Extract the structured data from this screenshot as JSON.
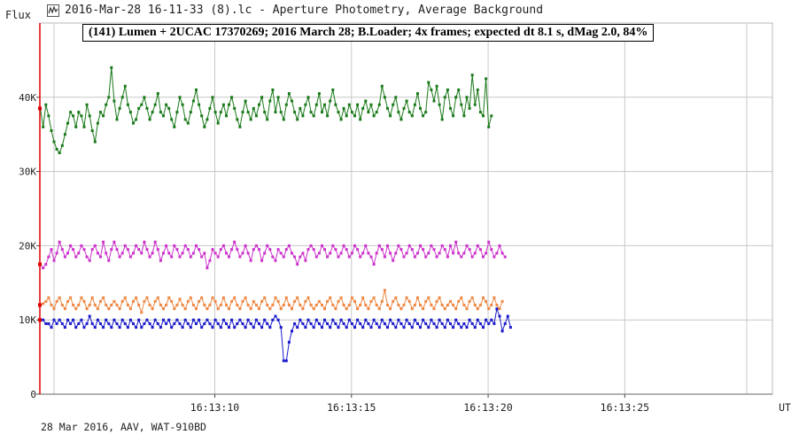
{
  "window": {
    "title": "2016-Mar-28 16-11-33 (8).lc - Aperture Photometry, Average Background",
    "icon": "lightcurve-app-icon"
  },
  "footer": "28 Mar 2016, AAV, WAT-910BD",
  "chart_data": {
    "type": "line",
    "title": "(141) Lumen + 2UCAC 17370269; 2016 March 28; B.Loader; 4x frames; expected dt 8.1 s, dMag 2.0, 84%",
    "ylabel": "Flux",
    "xlabel": "UT",
    "ylim": [
      0,
      50000
    ],
    "xlim": [
      "16:13:03.6",
      "16:13:30.4"
    ],
    "grid": true,
    "y_ticks": [
      {
        "value": 0,
        "label": "0"
      },
      {
        "value": 10000,
        "label": "10K"
      },
      {
        "value": 20000,
        "label": "20K"
      },
      {
        "value": 30000,
        "label": "30K"
      },
      {
        "value": 40000,
        "label": "40K"
      }
    ],
    "x_ticks": [
      {
        "value": "16:13:10",
        "label": "16:13:10"
      },
      {
        "value": "16:13:15",
        "label": "16:13:15"
      },
      {
        "value": "16:13:20",
        "label": "16:13:20"
      },
      {
        "value": "16:13:25",
        "label": "16:13:25"
      }
    ],
    "start_time": "16:13:03.62",
    "sample_interval_s": 0.1,
    "series": [
      {
        "color": "#1a7a1a",
        "values": [
          38500,
          36000,
          39000,
          37500,
          35500,
          34000,
          33000,
          32500,
          33500,
          35000,
          36500,
          38000,
          37500,
          36000,
          38000,
          37500,
          36000,
          39000,
          37500,
          35500,
          34000,
          36500,
          38000,
          37500,
          39000,
          40000,
          44000,
          39500,
          37000,
          38500,
          40000,
          41500,
          39000,
          38000,
          36500,
          37000,
          38500,
          39000,
          40000,
          38500,
          37000,
          38000,
          39000,
          40500,
          38000,
          37500,
          39000,
          38500,
          37000,
          36000,
          38000,
          40000,
          39000,
          37000,
          36500,
          38000,
          39500,
          41000,
          39000,
          37500,
          36000,
          37000,
          38500,
          40000,
          38000,
          36500,
          38000,
          39000,
          37500,
          39000,
          40000,
          38500,
          37000,
          36000,
          38000,
          39500,
          38000,
          37000,
          38500,
          37500,
          39000,
          40000,
          38000,
          37000,
          39500,
          41000,
          38000,
          40000,
          38000,
          37000,
          39000,
          40500,
          39500,
          38000,
          37000,
          38500,
          37500,
          39000,
          40000,
          38000,
          37500,
          39000,
          40500,
          38000,
          39000,
          37500,
          39500,
          41000,
          39000,
          38000,
          37000,
          38500,
          37500,
          39000,
          38000,
          37500,
          39000,
          37000,
          38500,
          39500,
          38000,
          39000,
          37500,
          38000,
          39000,
          41500,
          40000,
          38500,
          37500,
          39000,
          40000,
          38000,
          37000,
          38500,
          39500,
          38000,
          37500,
          39000,
          40500,
          38500,
          37500,
          38000,
          42000,
          41000,
          39500,
          41500,
          39000,
          37000,
          40000,
          41000,
          38500,
          37500,
          40000,
          41000,
          39000,
          37500,
          40000,
          38500,
          43000,
          39000,
          41000,
          38000,
          37500,
          42500,
          36000,
          37500
        ]
      },
      {
        "color": "#cc33cc",
        "values": [
          17500,
          17000,
          17500,
          18500,
          19500,
          18000,
          19000,
          20500,
          19500,
          18500,
          19000,
          20000,
          19500,
          18500,
          19000,
          20000,
          19500,
          18500,
          18000,
          19500,
          20000,
          19000,
          18500,
          20500,
          19000,
          18000,
          19500,
          20500,
          19500,
          18500,
          19000,
          20000,
          19500,
          18500,
          19000,
          20000,
          19500,
          19000,
          20500,
          19500,
          18500,
          19000,
          20500,
          19500,
          18000,
          19000,
          20000,
          19000,
          18500,
          20000,
          19500,
          18500,
          19000,
          20000,
          19500,
          18500,
          19000,
          20000,
          19500,
          18500,
          19000,
          17000,
          18000,
          19500,
          19000,
          18500,
          19500,
          20000,
          19000,
          18500,
          19500,
          20500,
          19500,
          18500,
          19000,
          20000,
          19000,
          18000,
          19500,
          20000,
          19500,
          18000,
          19000,
          20000,
          19500,
          18500,
          18000,
          19500,
          19000,
          18500,
          19500,
          20000,
          19000,
          18500,
          17500,
          18500,
          19000,
          18000,
          19500,
          20000,
          19500,
          18500,
          19000,
          20000,
          19500,
          18500,
          19000,
          20000,
          19500,
          18500,
          19000,
          20000,
          19500,
          18500,
          19000,
          20000,
          19500,
          18500,
          19000,
          20000,
          19000,
          18500,
          17500,
          19000,
          20000,
          19500,
          18500,
          20000,
          19000,
          18000,
          19000,
          20000,
          19500,
          18500,
          19000,
          20000,
          19500,
          18500,
          19000,
          20000,
          19500,
          18500,
          19000,
          20000,
          19500,
          18500,
          19000,
          20000,
          19500,
          18500,
          20000,
          19000,
          20500,
          19000,
          18500,
          19000,
          20000,
          19500,
          18500,
          19000,
          20000,
          19500,
          18500,
          19000,
          20500,
          19500,
          18500,
          19000,
          20000,
          19000,
          18500
        ]
      },
      {
        "color": "#ee8844",
        "values": [
          12000,
          12200,
          12500,
          13000,
          12000,
          11500,
          12500,
          13000,
          12000,
          11500,
          12500,
          13000,
          12000,
          11500,
          12000,
          13000,
          12500,
          11500,
          12000,
          13000,
          12000,
          11500,
          12500,
          13000,
          12000,
          11500,
          12000,
          12500,
          12000,
          11500,
          12500,
          13000,
          12000,
          11500,
          12500,
          13000,
          12000,
          11000,
          12500,
          13000,
          12000,
          11500,
          12500,
          13000,
          12000,
          11500,
          12000,
          13000,
          12500,
          11500,
          12000,
          12800,
          12000,
          11500,
          12500,
          13000,
          12000,
          11500,
          12500,
          13000,
          12000,
          11500,
          12000,
          13000,
          12500,
          11500,
          12000,
          13000,
          12000,
          11500,
          12500,
          13000,
          12000,
          11500,
          12500,
          13000,
          12000,
          11500,
          12500,
          12000,
          11500,
          12500,
          13000,
          12000,
          11500,
          12000,
          13000,
          12500,
          11500,
          12000,
          13000,
          12000,
          11500,
          12500,
          13000,
          12000,
          11500,
          12500,
          13000,
          12000,
          11500,
          12000,
          12500,
          12000,
          11500,
          12500,
          13000,
          12000,
          11500,
          12500,
          13000,
          12000,
          11500,
          12000,
          13000,
          12500,
          11500,
          12000,
          13000,
          12000,
          11500,
          12500,
          13000,
          12000,
          11500,
          12500,
          14000,
          12000,
          11500,
          12500,
          13000,
          12000,
          11500,
          12000,
          13000,
          12500,
          11500,
          12000,
          13000,
          12000,
          11500,
          12500,
          13000,
          12000,
          11500,
          12500,
          13000,
          12000,
          11500,
          12000,
          12500,
          12000,
          11500,
          12500,
          13000,
          12000,
          11500,
          12500,
          13000,
          12000,
          11500,
          12000,
          13000,
          12500,
          11500,
          12000,
          13000,
          12000,
          11500,
          12500
        ]
      },
      {
        "color": "#1a1acc",
        "values": [
          10000,
          10000,
          9500,
          9500,
          9000,
          10000,
          9500,
          10000,
          9500,
          9000,
          10000,
          9500,
          10000,
          9000,
          9500,
          10000,
          9000,
          9500,
          10500,
          9500,
          9000,
          10000,
          9500,
          9000,
          10000,
          9500,
          9000,
          10000,
          9500,
          9000,
          10000,
          9500,
          9000,
          10000,
          9500,
          9000,
          10000,
          9000,
          9500,
          10000,
          9500,
          9000,
          10000,
          9500,
          9000,
          10000,
          9500,
          10000,
          9000,
          9500,
          10000,
          9500,
          9000,
          10000,
          9500,
          9000,
          10000,
          9500,
          10000,
          9000,
          9500,
          10000,
          9500,
          9000,
          10000,
          9500,
          9000,
          10000,
          9500,
          9000,
          10000,
          9000,
          9500,
          10000,
          9500,
          9000,
          10000,
          9500,
          9000,
          10000,
          9500,
          9000,
          10000,
          9500,
          9000,
          10000,
          10500,
          10000,
          9000,
          4500,
          4500,
          7000,
          8500,
          9500,
          9000,
          10000,
          9500,
          9000,
          10000,
          9500,
          9000,
          10000,
          9500,
          9000,
          10000,
          9500,
          9000,
          10000,
          9500,
          9000,
          10000,
          9500,
          9000,
          10000,
          9500,
          9000,
          10000,
          9500,
          9000,
          10000,
          9500,
          9000,
          10000,
          9500,
          9000,
          10000,
          9500,
          9000,
          10000,
          9500,
          9000,
          10000,
          9500,
          9000,
          10000,
          9500,
          9000,
          10000,
          9500,
          9000,
          10000,
          9500,
          9000,
          10000,
          9500,
          9000,
          10000,
          9500,
          9000,
          10000,
          9500,
          9000,
          10000,
          9500,
          9000,
          9500,
          9000,
          10000,
          9500,
          9000,
          10000,
          9500,
          9000,
          10000,
          9500,
          10000,
          9500,
          11500,
          10500,
          8500,
          9500,
          10500,
          9000
        ]
      }
    ]
  }
}
